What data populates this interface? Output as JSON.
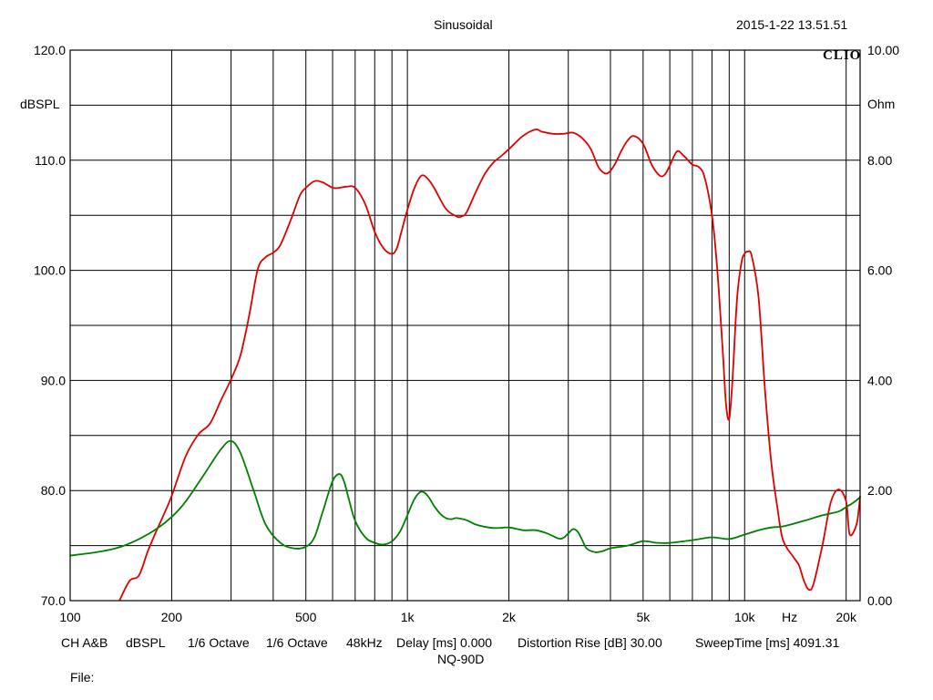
{
  "header": {
    "title": "Sinusoidal",
    "timestamp": "2015-1-22 13.51.51",
    "brand": "CLIO"
  },
  "footer": {
    "settings": [
      "CH A&B",
      "dBSPL",
      "1/6 Octave",
      "1/6 Octave",
      "48kHz",
      "Delay [ms] 0.000",
      "Distortion Rise [dB] 30.00",
      "SweepTime [ms] 4091.31"
    ],
    "model": "NQ-90D",
    "file_label": "File:"
  },
  "chart_data": {
    "type": "line",
    "xscale": "log",
    "xlim": [
      100,
      22000
    ],
    "ylim_left": [
      70,
      120
    ],
    "ylim_right": [
      0,
      10
    ],
    "ylabel_left": "dBSPL",
    "ylabel_right": "Ohm",
    "xlabel": "Hz",
    "x_ticks": [
      {
        "value": 100,
        "label": "100"
      },
      {
        "value": 200,
        "label": "200"
      },
      {
        "value": 500,
        "label": "500"
      },
      {
        "value": 1000,
        "label": "1k"
      },
      {
        "value": 2000,
        "label": "2k"
      },
      {
        "value": 5000,
        "label": "5k"
      },
      {
        "value": 10000,
        "label": "10k"
      },
      {
        "value": 20000,
        "label": "20k"
      }
    ],
    "y_ticks_left": [
      "70.0",
      "80.0",
      "90.0",
      "100.0",
      "110.0",
      "120.0"
    ],
    "y_ticks_right": [
      "0.00",
      "2.00",
      "4.00",
      "6.00",
      "8.00",
      "10.00"
    ],
    "grid": true,
    "series": [
      {
        "axis": "left",
        "color": "#e00000",
        "x": [
          140,
          150,
          160,
          170,
          180,
          190,
          200,
          220,
          240,
          260,
          280,
          300,
          320,
          340,
          360,
          380,
          400,
          420,
          450,
          480,
          500,
          530,
          560,
          600,
          630,
          660,
          700,
          750,
          800,
          850,
          900,
          930,
          960,
          1000,
          1050,
          1100,
          1150,
          1200,
          1300,
          1400,
          1450,
          1500,
          1600,
          1700,
          1800,
          1900,
          2000,
          2200,
          2400,
          2500,
          2700,
          2900,
          3100,
          3300,
          3500,
          3700,
          3900,
          4100,
          4300,
          4500,
          4700,
          5000,
          5300,
          5600,
          5800,
          6000,
          6300,
          6600,
          7000,
          7300,
          7600,
          8000,
          8300,
          8600,
          8800,
          9000,
          9200,
          9500,
          9800,
          10000,
          10200,
          10500,
          11000,
          11500,
          12000,
          12500,
          13000,
          14000,
          14500,
          15000,
          15500,
          16000,
          17000,
          18000,
          19000,
          20000,
          20500,
          21500,
          22000
        ],
        "y": [
          70,
          71.8,
          72.3,
          74.5,
          76.3,
          77.9,
          79.5,
          83.1,
          85.1,
          86.1,
          88.2,
          90.1,
          92.3,
          96.0,
          100.1,
          101.2,
          101.6,
          102.3,
          104.5,
          106.8,
          107.5,
          108.1,
          108.0,
          107.5,
          107.5,
          107.6,
          107.5,
          106.0,
          103.5,
          102.0,
          101.5,
          102.0,
          103.5,
          105.5,
          107.5,
          108.6,
          108.3,
          107.5,
          105.6,
          104.9,
          104.9,
          105.3,
          107.2,
          108.8,
          109.8,
          110.4,
          111.0,
          112.2,
          112.8,
          112.6,
          112.4,
          112.4,
          112.5,
          112.0,
          111.0,
          109.3,
          108.8,
          109.5,
          110.8,
          111.8,
          112.2,
          111.5,
          109.6,
          108.6,
          108.7,
          109.5,
          110.8,
          110.4,
          109.6,
          109.4,
          108.5,
          105.0,
          100.0,
          93.0,
          88.0,
          86.5,
          90.0,
          97.5,
          100.8,
          101.5,
          101.7,
          101.3,
          97.5,
          89.0,
          82.5,
          78.5,
          75.5,
          73.9,
          73.2,
          71.8,
          71.0,
          71.5,
          75.0,
          78.9,
          80.1,
          79.0,
          76.0,
          77.0,
          79.5
        ]
      },
      {
        "axis": "right",
        "color": "#008000",
        "x": [
          100,
          120,
          140,
          160,
          180,
          200,
          220,
          250,
          280,
          300,
          320,
          350,
          380,
          420,
          460,
          500,
          530,
          560,
          600,
          630,
          650,
          670,
          700,
          750,
          800,
          850,
          900,
          950,
          1000,
          1050,
          1100,
          1150,
          1200,
          1250,
          1300,
          1350,
          1400,
          1500,
          1600,
          1800,
          2000,
          2200,
          2400,
          2600,
          2800,
          2900,
          3000,
          3100,
          3200,
          3300,
          3400,
          3600,
          3800,
          4000,
          4500,
          5000,
          5500,
          6000,
          7000,
          8000,
          9000,
          10000,
          11000,
          12000,
          13000,
          15000,
          17000,
          19000,
          20000,
          21000,
          22000
        ],
        "y": [
          0.82,
          0.88,
          0.97,
          1.12,
          1.3,
          1.52,
          1.8,
          2.3,
          2.75,
          2.9,
          2.68,
          2.0,
          1.38,
          1.05,
          0.95,
          0.98,
          1.15,
          1.6,
          2.17,
          2.3,
          2.15,
          1.85,
          1.45,
          1.15,
          1.05,
          1.02,
          1.08,
          1.25,
          1.55,
          1.85,
          1.98,
          1.9,
          1.72,
          1.58,
          1.5,
          1.48,
          1.5,
          1.46,
          1.38,
          1.32,
          1.33,
          1.28,
          1.28,
          1.22,
          1.13,
          1.14,
          1.22,
          1.3,
          1.25,
          1.1,
          0.95,
          0.88,
          0.9,
          0.95,
          1.0,
          1.08,
          1.05,
          1.05,
          1.1,
          1.15,
          1.12,
          1.2,
          1.28,
          1.33,
          1.35,
          1.45,
          1.55,
          1.62,
          1.7,
          1.78,
          1.88
        ]
      }
    ]
  }
}
